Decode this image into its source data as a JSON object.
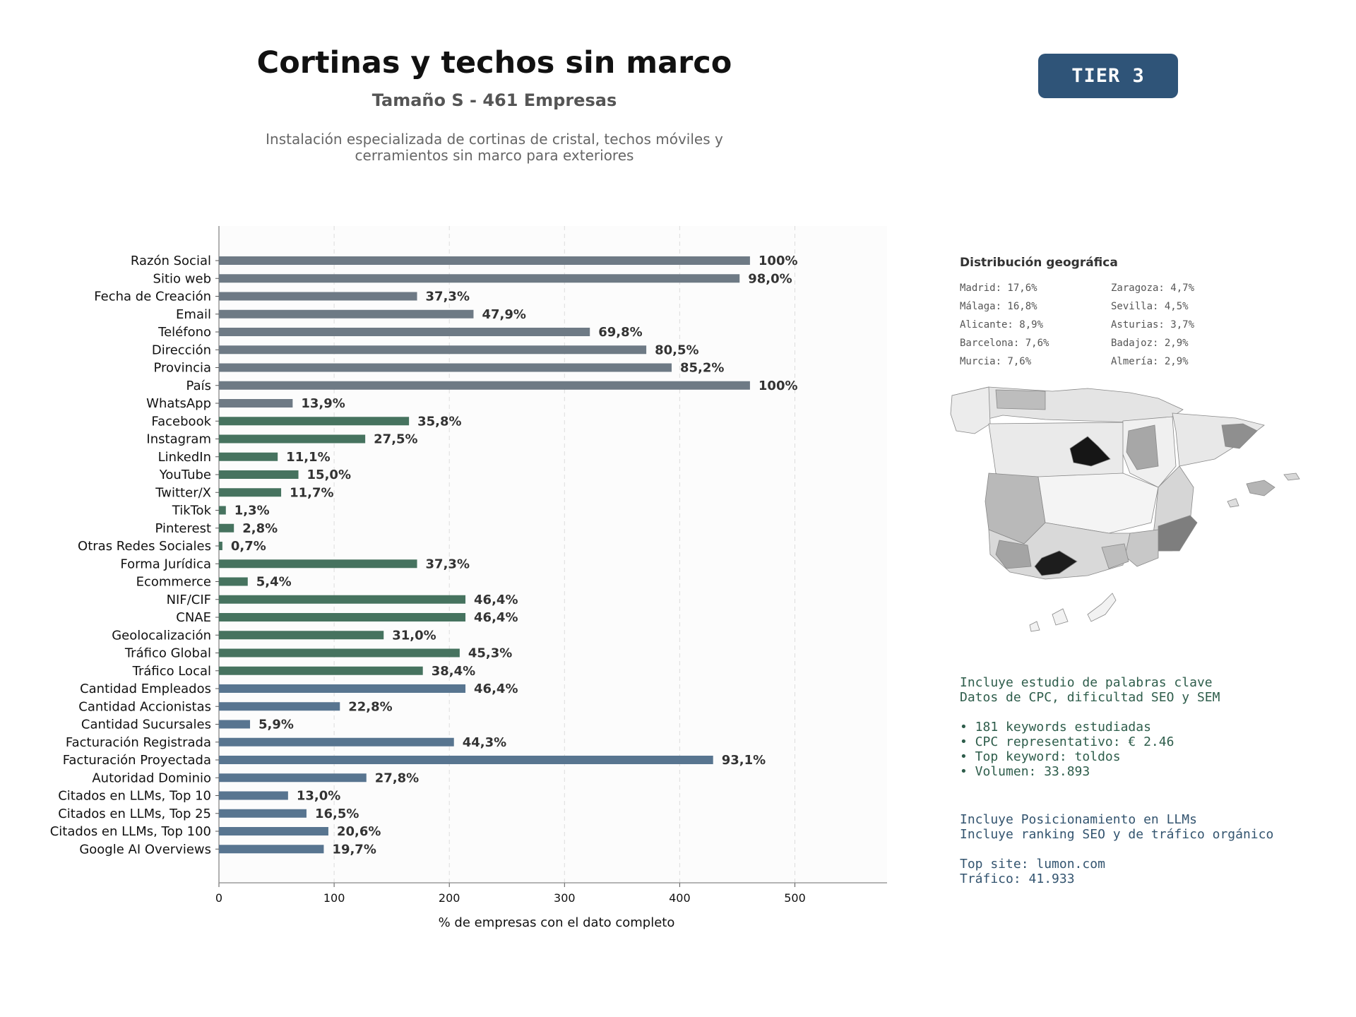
{
  "header": {
    "title": "Cortinas y techos sin marco",
    "subtitle": "Tamaño S - 461 Empresas",
    "description": "Instalación especializada de cortinas de cristal, techos móviles y\ncerramientos sin marco para exteriores",
    "tier": "TIER 3"
  },
  "chart_data": {
    "type": "bar",
    "orientation": "horizontal",
    "categories": [
      "Razón Social",
      "Sitio web",
      "Fecha de Creación",
      "Email",
      "Teléfono",
      "Dirección",
      "Provincia",
      "País",
      "WhatsApp",
      "Facebook",
      "Instagram",
      "LinkedIn",
      "YouTube",
      "Twitter/X",
      "TikTok",
      "Pinterest",
      "Otras Redes Sociales",
      "Forma Jurídica",
      "Ecommerce",
      "NIF/CIF",
      "CNAE",
      "Geolocalización",
      "Tráfico Global",
      "Tráfico Local",
      "Cantidad Empleados",
      "Cantidad Accionistas",
      "Cantidad Sucursales",
      "Facturación Registrada",
      "Facturación Proyectada",
      "Autoridad Dominio",
      "Citados en LLMs, Top 10",
      "Citados en LLMs, Top 25",
      "Citados en LLMs, Top 100",
      "Google AI Overviews"
    ],
    "values": [
      461,
      452,
      172,
      221,
      322,
      371,
      393,
      461,
      64,
      165,
      127,
      51,
      69,
      54,
      6,
      13,
      3,
      172,
      25,
      214,
      214,
      143,
      209,
      177,
      214,
      105,
      27,
      204,
      429,
      128,
      60,
      76,
      95,
      91
    ],
    "labels": [
      "100%",
      "98,0%",
      "37,3%",
      "47,9%",
      "69,8%",
      "80,5%",
      "85,2%",
      "100%",
      "13,9%",
      "35,8%",
      "27,5%",
      "11,1%",
      "15,0%",
      "11,7%",
      "1,3%",
      "2,8%",
      "0,7%",
      "37,3%",
      "5,4%",
      "46,4%",
      "46,4%",
      "31,0%",
      "45,3%",
      "38,4%",
      "46,4%",
      "22,8%",
      "5,9%",
      "44,3%",
      "93,1%",
      "27,8%",
      "13,0%",
      "16,5%",
      "20,6%",
      "19,7%"
    ],
    "groups": [
      "grey",
      "grey",
      "grey",
      "grey",
      "grey",
      "grey",
      "grey",
      "grey",
      "grey",
      "green",
      "green",
      "green",
      "green",
      "green",
      "green",
      "green",
      "green",
      "green",
      "green",
      "green",
      "green",
      "green",
      "green",
      "green",
      "blue",
      "blue",
      "blue",
      "blue",
      "blue",
      "blue",
      "blue",
      "blue",
      "blue",
      "blue"
    ],
    "group_colors": {
      "grey": "#6e7a85",
      "green": "#46735f",
      "blue": "#587590"
    },
    "xlabel": "% de empresas con el dato completo",
    "xlim": [
      0,
      580
    ],
    "xticks": [
      0,
      100,
      200,
      300,
      400,
      500
    ],
    "grid": "vertical dashed"
  },
  "geo": {
    "title": "Distribución geográfica",
    "col1": [
      "Madrid: 17,6%",
      "Málaga: 16,8%",
      "Alicante: 8,9%",
      "Barcelona: 7,6%",
      "Murcia: 7,6%"
    ],
    "col2": [
      "Zaragoza: 4,7%",
      "Sevilla: 4,5%",
      "Asturias: 3,7%",
      "Badajoz: 2,9%",
      "Almería: 2,9%"
    ]
  },
  "keywords": {
    "line1": "Incluye estudio de palabras clave",
    "line2": "Datos de CPC, dificultad SEO y SEM",
    "b1": "• 181 keywords estudiadas",
    "b2": "• CPC representativo: € 2.46",
    "b3": "• Top keyword: toldos",
    "b4": "• Volumen: 33.893"
  },
  "llm": {
    "line1": "Incluye Posicionamiento en LLMs",
    "line2": "Incluye ranking SEO y de tráfico orgánico",
    "site": "Top site: lumon.com",
    "traffic": "Tráfico: 41.933"
  }
}
